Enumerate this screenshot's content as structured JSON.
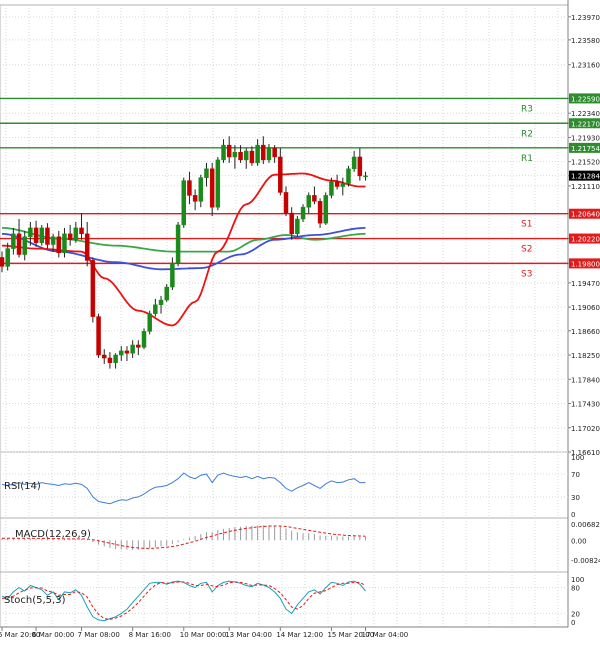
{
  "chart_data": {
    "type": "candlestick",
    "main": {
      "y_ticks": [
        "1.23970",
        "1.23580",
        "1.23160",
        "1.22590",
        "1.22340",
        "1.22170",
        "1.21930",
        "1.21754",
        "1.21520",
        "1.21284",
        "1.21110",
        "1.20640",
        "1.20220",
        "1.19800",
        "1.19470",
        "1.19060",
        "1.18660",
        "1.18250",
        "1.17840",
        "1.17430",
        "1.17020",
        "1.16610"
      ],
      "ylim": [
        1.1661,
        1.2417
      ],
      "levels": [
        {
          "name": "R3",
          "value": 1.2259,
          "label": "1.22590",
          "color": "#2e8b2e"
        },
        {
          "name": "R2",
          "value": 1.2217,
          "label": "1.22170",
          "color": "#2e8b2e"
        },
        {
          "name": "R1",
          "value": 1.21754,
          "label": "1.21754",
          "color": "#2e8b2e"
        },
        {
          "name": "S1",
          "value": 1.2064,
          "label": "1.20640",
          "color": "#e01b1b"
        },
        {
          "name": "S2",
          "value": 1.2022,
          "label": "1.20220",
          "color": "#e01b1b"
        },
        {
          "name": "S3",
          "value": 1.198,
          "label": "1.19800",
          "color": "#e01b1b"
        }
      ],
      "current_price": {
        "value": 1.21284,
        "label": "1.21284"
      },
      "candles": [
        [
          1.199,
          1.2,
          1.1965,
          1.1975
        ],
        [
          1.1975,
          1.2015,
          1.1968,
          1.2005
        ],
        [
          1.2005,
          1.204,
          1.1995,
          1.203
        ],
        [
          1.203,
          1.2055,
          1.199,
          1.1995
        ],
        [
          1.1995,
          1.2035,
          1.1985,
          1.2025
        ],
        [
          1.2025,
          1.205,
          1.201,
          1.204
        ],
        [
          1.204,
          1.2052,
          1.2008,
          1.2015
        ],
        [
          1.2015,
          1.2045,
          1.201,
          1.204
        ],
        [
          1.204,
          1.2048,
          1.2005,
          1.2012
        ],
        [
          1.2012,
          1.203,
          1.2,
          1.2025
        ],
        [
          1.2025,
          1.2035,
          1.199,
          1.1998
        ],
        [
          1.1998,
          1.204,
          1.199,
          1.203
        ],
        [
          1.203,
          1.2045,
          1.201,
          1.202
        ],
        [
          1.202,
          1.205,
          1.2015,
          1.204
        ],
        [
          1.204,
          1.2065,
          1.202,
          1.203
        ],
        [
          1.203,
          1.205,
          1.1975,
          1.1985
        ],
        [
          1.1985,
          1.199,
          1.188,
          1.189
        ],
        [
          1.189,
          1.1895,
          1.182,
          1.1825
        ],
        [
          1.1825,
          1.1835,
          1.181,
          1.182
        ],
        [
          1.182,
          1.183,
          1.1802,
          1.1812
        ],
        [
          1.1812,
          1.1828,
          1.1802,
          1.1825
        ],
        [
          1.1825,
          1.184,
          1.1815,
          1.1832
        ],
        [
          1.1832,
          1.184,
          1.1815,
          1.1828
        ],
        [
          1.1828,
          1.185,
          1.182,
          1.1842
        ],
        [
          1.1842,
          1.185,
          1.1825,
          1.1838
        ],
        [
          1.1838,
          1.187,
          1.1835,
          1.1865
        ],
        [
          1.1865,
          1.19,
          1.186,
          1.1895
        ],
        [
          1.1895,
          1.192,
          1.189,
          1.191
        ],
        [
          1.191,
          1.1925,
          1.1895,
          1.1918
        ],
        [
          1.1918,
          1.1945,
          1.1915,
          1.194
        ],
        [
          1.194,
          1.199,
          1.1935,
          1.198
        ],
        [
          1.198,
          1.205,
          1.1975,
          1.2045
        ],
        [
          1.2045,
          1.2125,
          1.204,
          1.212
        ],
        [
          1.212,
          1.2135,
          1.208,
          1.2095
        ],
        [
          1.2095,
          1.2105,
          1.207,
          1.2085
        ],
        [
          1.2085,
          1.213,
          1.2075,
          1.2125
        ],
        [
          1.2125,
          1.215,
          1.211,
          1.214
        ],
        [
          1.214,
          1.215,
          1.206,
          1.2075
        ],
        [
          1.2075,
          1.216,
          1.207,
          1.2155
        ],
        [
          1.2155,
          1.219,
          1.215,
          1.218
        ],
        [
          1.218,
          1.2195,
          1.215,
          1.216
        ],
        [
          1.216,
          1.218,
          1.214,
          1.2168
        ],
        [
          1.2168,
          1.218,
          1.215,
          1.2155
        ],
        [
          1.2155,
          1.2175,
          1.214,
          1.217
        ],
        [
          1.217,
          1.2178,
          1.2145,
          1.215
        ],
        [
          1.215,
          1.219,
          1.2145,
          1.218
        ],
        [
          1.218,
          1.2195,
          1.2148,
          1.2155
        ],
        [
          1.2155,
          1.2182,
          1.215,
          1.2175
        ],
        [
          1.2175,
          1.218,
          1.215,
          1.216
        ],
        [
          1.216,
          1.2175,
          1.2095,
          1.21
        ],
        [
          1.21,
          1.211,
          1.206,
          1.2065
        ],
        [
          1.2065,
          1.2075,
          1.202,
          1.203
        ],
        [
          1.203,
          1.206,
          1.2025,
          1.2055
        ],
        [
          1.2055,
          1.208,
          1.205,
          1.2075
        ],
        [
          1.2075,
          1.21,
          1.2065,
          1.2095
        ],
        [
          1.2095,
          1.211,
          1.208,
          1.2085
        ],
        [
          1.2085,
          1.209,
          1.204,
          1.2048
        ],
        [
          1.2048,
          1.21,
          1.2045,
          1.2095
        ],
        [
          1.2095,
          1.2125,
          1.209,
          1.2118
        ],
        [
          1.2118,
          1.213,
          1.2105,
          1.211
        ],
        [
          1.211,
          1.2125,
          1.2095,
          1.2115
        ],
        [
          1.2115,
          1.2145,
          1.211,
          1.214
        ],
        [
          1.214,
          1.217,
          1.2135,
          1.216
        ],
        [
          1.216,
          1.2175,
          1.212,
          1.2128
        ],
        [
          1.2128,
          1.2135,
          1.212,
          1.2128
        ]
      ],
      "moving_averages": [
        {
          "color": "#3aa64a",
          "anchors": [
            [
              0,
              1.204
            ],
            [
              10,
              1.2022
            ],
            [
              20,
              1.201
            ],
            [
              30,
              1.2
            ],
            [
              40,
              1.2
            ],
            [
              45,
              1.202
            ],
            [
              50,
              1.2028
            ],
            [
              55,
              1.202
            ],
            [
              64,
              1.203
            ]
          ]
        },
        {
          "color": "#3f4fd6",
          "anchors": [
            [
              0,
              1.203
            ],
            [
              10,
              1.2
            ],
            [
              20,
              1.1982
            ],
            [
              28,
              1.197
            ],
            [
              35,
              1.1972
            ],
            [
              42,
              1.1995
            ],
            [
              48,
              1.202
            ],
            [
              55,
              1.2028
            ],
            [
              64,
              1.204
            ]
          ]
        },
        {
          "color": "#ee1111",
          "anchors": [
            [
              0,
              1.201
            ],
            [
              6,
              1.2005
            ],
            [
              14,
              1.2
            ],
            [
              18,
              1.1955
            ],
            [
              24,
              1.19
            ],
            [
              30,
              1.1875
            ],
            [
              34,
              1.1915
            ],
            [
              38,
              1.2
            ],
            [
              43,
              1.208
            ],
            [
              48,
              1.213
            ],
            [
              53,
              1.2132
            ],
            [
              58,
              1.212
            ],
            [
              63,
              1.211
            ],
            [
              64,
              1.211
            ]
          ]
        }
      ]
    },
    "rsi": {
      "label": "RSI(14)",
      "y_ticks": [
        "100",
        "70",
        "30",
        "0"
      ],
      "ylim": [
        0,
        100
      ],
      "values": [
        52,
        50,
        52,
        55,
        52,
        54,
        52,
        55,
        53,
        52,
        50,
        53,
        52,
        54,
        52,
        45,
        30,
        22,
        20,
        18,
        22,
        25,
        24,
        28,
        30,
        35,
        42,
        47,
        48,
        50,
        55,
        62,
        72,
        65,
        62,
        68,
        70,
        55,
        68,
        72,
        68,
        66,
        64,
        66,
        62,
        66,
        62,
        64,
        63,
        55,
        45,
        40,
        46,
        50,
        55,
        50,
        45,
        53,
        58,
        55,
        56,
        60,
        62,
        55,
        55
      ]
    },
    "macd": {
      "label": "MACD(12,26,9)",
      "y_ticks": [
        "0.006829",
        "0.00",
        "-0.008249"
      ],
      "ylim": [
        -0.008249,
        0.006829
      ],
      "histogram": [
        0.0008,
        0.0007,
        0.0008,
        0.0009,
        0.0008,
        0.0008,
        0.0007,
        0.0007,
        0.0006,
        0.0006,
        0.0005,
        0.0005,
        0.0005,
        0.0005,
        0.0005,
        0.0002,
        -0.0008,
        -0.0018,
        -0.0026,
        -0.0032,
        -0.0036,
        -0.0038,
        -0.0039,
        -0.004,
        -0.004,
        -0.0038,
        -0.0034,
        -0.003,
        -0.0026,
        -0.0022,
        -0.0016,
        -0.0008,
        0.0004,
        0.0012,
        0.0018,
        0.0026,
        0.0034,
        0.0035,
        0.0042,
        0.0048,
        0.0052,
        0.0055,
        0.0057,
        0.006,
        0.0061,
        0.0062,
        0.0063,
        0.0063,
        0.0062,
        0.0058,
        0.005,
        0.004,
        0.0034,
        0.003,
        0.003,
        0.0026,
        0.002,
        0.0019,
        0.0019,
        0.0017,
        0.0016,
        0.0016,
        0.0017,
        0.0015,
        0.0014
      ],
      "signal": [
        0.0009,
        0.0009,
        0.0009,
        0.0009,
        0.0009,
        0.0009,
        0.0008,
        0.0008,
        0.0008,
        0.0007,
        0.0007,
        0.0006,
        0.0006,
        0.0006,
        0.0006,
        0.0005,
        0.0002,
        -0.0002,
        -0.0007,
        -0.0012,
        -0.0017,
        -0.0022,
        -0.0026,
        -0.003,
        -0.0032,
        -0.0034,
        -0.0034,
        -0.0033,
        -0.0031,
        -0.0029,
        -0.0026,
        -0.0022,
        -0.0016,
        -0.001,
        -0.0004,
        0.0004,
        0.0012,
        0.0018,
        0.0025,
        0.0031,
        0.0037,
        0.0042,
        0.0046,
        0.005,
        0.0053,
        0.0056,
        0.0058,
        0.006,
        0.006,
        0.006,
        0.0058,
        0.0054,
        0.005,
        0.0046,
        0.0042,
        0.0038,
        0.0034,
        0.003,
        0.0027,
        0.0024,
        0.0022,
        0.002,
        0.0019,
        0.0018,
        0.0017
      ]
    },
    "stoch": {
      "label": "Stoch(5,5,3)",
      "y_ticks": [
        "100",
        "80",
        "20",
        "0"
      ],
      "ylim": [
        0,
        100
      ],
      "main": [
        60,
        55,
        70,
        80,
        72,
        85,
        80,
        75,
        62,
        70,
        52,
        70,
        68,
        75,
        62,
        35,
        12,
        5,
        3,
        8,
        12,
        20,
        30,
        45,
        60,
        75,
        90,
        92,
        92,
        88,
        93,
        95,
        92,
        85,
        80,
        90,
        92,
        70,
        85,
        92,
        95,
        93,
        90,
        85,
        82,
        90,
        86,
        80,
        70,
        55,
        30,
        20,
        40,
        55,
        70,
        75,
        65,
        80,
        92,
        90,
        85,
        93,
        95,
        88,
        72
      ],
      "signal": [
        55,
        56,
        60,
        68,
        74,
        79,
        80,
        79,
        72,
        69,
        62,
        64,
        64,
        71,
        68,
        58,
        35,
        18,
        8,
        6,
        9,
        14,
        22,
        32,
        45,
        60,
        75,
        86,
        92,
        90,
        91,
        93,
        93,
        90,
        85,
        85,
        88,
        84,
        82,
        86,
        91,
        93,
        92,
        89,
        85,
        86,
        86,
        85,
        78,
        68,
        52,
        35,
        30,
        38,
        55,
        67,
        70,
        73,
        80,
        87,
        90,
        90,
        92,
        92,
        85
      ]
    },
    "x_ticks": [
      {
        "label": "5 Mar 20:00",
        "i": 0
      },
      {
        "label": "6 Mar 00:00",
        "i": 6
      },
      {
        "label": "7 Mar 08:00",
        "i": 14
      },
      {
        "label": "8 Mar 16:00",
        "i": 23
      },
      {
        "label": "10 Mar 00:00",
        "i": 32
      },
      {
        "label": "13 Mar 04:00",
        "i": 40
      },
      {
        "label": "14 Mar 12:00",
        "i": 49
      },
      {
        "label": "15 Mar 20:00",
        "i": 58
      },
      {
        "label": "17 Mar 04:00",
        "i": 64
      }
    ]
  }
}
